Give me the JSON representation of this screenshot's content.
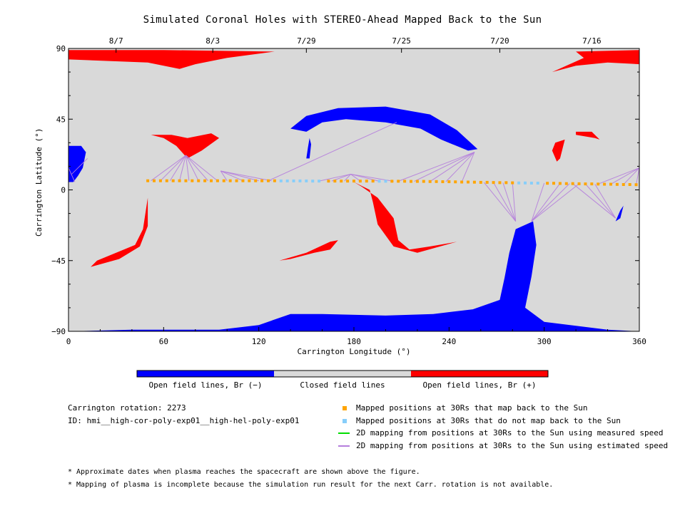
{
  "chart_data": {
    "type": "map",
    "title": "Simulated Coronal Holes with STEREO-Ahead Mapped Back to the Sun",
    "xlabel": "Carrington Longitude (°)",
    "ylabel": "Carrington Latitude (°)",
    "xlim": [
      0,
      360
    ],
    "ylim": [
      -90,
      90
    ],
    "xticks": [
      0,
      60,
      120,
      180,
      240,
      300,
      360
    ],
    "yticks": [
      90,
      45,
      0,
      -45,
      -90
    ],
    "top_date_axis": [
      {
        "label": "8/7",
        "lon": 30
      },
      {
        "label": "8/3",
        "lon": 91
      },
      {
        "label": "7/29",
        "lon": 150
      },
      {
        "label": "7/25",
        "lon": 210
      },
      {
        "label": "7/20",
        "lon": 272
      },
      {
        "label": "7/16",
        "lon": 330
      }
    ],
    "regions": [
      {
        "class": "neg",
        "lonlat": [
          [
            0,
            -90
          ],
          [
            40,
            -89
          ],
          [
            95,
            -89
          ],
          [
            120,
            -86
          ],
          [
            140,
            -79
          ],
          [
            160,
            -79
          ],
          [
            200,
            -80
          ],
          [
            230,
            -79
          ],
          [
            255,
            -76
          ],
          [
            272,
            -70
          ],
          [
            275,
            -56
          ],
          [
            278,
            -40
          ],
          [
            282,
            -25
          ],
          [
            293,
            -20
          ],
          [
            295,
            -35
          ],
          [
            292,
            -55
          ],
          [
            288,
            -75
          ],
          [
            300,
            -84
          ],
          [
            340,
            -89
          ],
          [
            360,
            -90
          ]
        ]
      },
      {
        "class": "neg",
        "lonlat": [
          [
            140,
            39
          ],
          [
            150,
            47
          ],
          [
            170,
            52
          ],
          [
            200,
            53
          ],
          [
            228,
            48
          ],
          [
            245,
            38
          ],
          [
            258,
            26
          ],
          [
            252,
            25
          ],
          [
            235,
            32
          ],
          [
            222,
            39
          ],
          [
            200,
            43
          ],
          [
            175,
            45
          ],
          [
            160,
            43
          ],
          [
            150,
            37
          ]
        ]
      },
      {
        "class": "neg",
        "lonlat": [
          [
            0,
            28
          ],
          [
            8,
            28
          ],
          [
            11,
            24
          ],
          [
            9,
            14
          ],
          [
            6,
            9
          ],
          [
            3,
            5
          ],
          [
            0,
            5
          ]
        ]
      },
      {
        "class": "neg",
        "lonlat": [
          [
            345,
            -20
          ],
          [
            348,
            -13
          ],
          [
            350,
            -10
          ],
          [
            348,
            -18
          ]
        ]
      },
      {
        "class": "neg",
        "lonlat": [
          [
            151,
            27
          ],
          [
            152,
            33
          ],
          [
            153,
            29
          ],
          [
            152,
            20
          ],
          [
            150,
            20
          ]
        ]
      },
      {
        "class": "pos",
        "lonlat": [
          [
            0,
            89
          ],
          [
            60,
            89
          ],
          [
            130,
            88
          ],
          [
            100,
            84
          ],
          [
            80,
            80
          ],
          [
            70,
            77
          ],
          [
            50,
            81
          ],
          [
            0,
            83
          ]
        ]
      },
      {
        "class": "pos",
        "lonlat": [
          [
            320,
            88
          ],
          [
            360,
            89
          ],
          [
            360,
            80
          ],
          [
            340,
            81
          ],
          [
            320,
            79
          ],
          [
            305,
            75
          ],
          [
            325,
            84
          ]
        ]
      },
      {
        "class": "pos",
        "lonlat": [
          [
            52,
            35
          ],
          [
            65,
            35
          ],
          [
            75,
            33
          ],
          [
            90,
            36
          ],
          [
            95,
            33
          ],
          [
            84,
            25
          ],
          [
            75,
            20
          ],
          [
            68,
            28
          ],
          [
            60,
            33
          ]
        ]
      },
      {
        "class": "pos",
        "lonlat": [
          [
            320,
            37
          ],
          [
            330,
            37
          ],
          [
            335,
            32
          ],
          [
            332,
            33
          ],
          [
            320,
            35
          ]
        ]
      },
      {
        "class": "pos",
        "lonlat": [
          [
            313,
            32
          ],
          [
            307,
            30
          ],
          [
            305,
            25
          ],
          [
            308,
            18
          ],
          [
            310,
            20
          ]
        ]
      },
      {
        "class": "pos",
        "lonlat": [
          [
            14,
            -49
          ],
          [
            32,
            -44
          ],
          [
            45,
            -36
          ],
          [
            50,
            -23
          ],
          [
            50,
            -5
          ],
          [
            47,
            -25
          ],
          [
            42,
            -35
          ],
          [
            30,
            -40
          ],
          [
            18,
            -45
          ]
        ]
      },
      {
        "class": "pos",
        "lonlat": [
          [
            133,
            -45
          ],
          [
            150,
            -40
          ],
          [
            165,
            -33
          ],
          [
            170,
            -32
          ],
          [
            165,
            -38
          ],
          [
            155,
            -40
          ],
          [
            140,
            -44
          ]
        ]
      },
      {
        "class": "pos",
        "lonlat": [
          [
            180,
            5
          ],
          [
            190,
            0
          ],
          [
            192,
            -8
          ],
          [
            195,
            -22
          ],
          [
            205,
            -36
          ],
          [
            220,
            -40
          ],
          [
            245,
            -33
          ],
          [
            228,
            -36
          ],
          [
            215,
            -38
          ],
          [
            208,
            -32
          ],
          [
            205,
            -18
          ],
          [
            195,
            -5
          ],
          [
            185,
            2
          ]
        ]
      }
    ],
    "points_map_back": [
      {
        "lon": 50,
        "lat": 5.8
      },
      {
        "lon": 54,
        "lat": 5.8
      },
      {
        "lon": 58,
        "lat": 5.8
      },
      {
        "lon": 62,
        "lat": 5.8
      },
      {
        "lon": 66,
        "lat": 5.8
      },
      {
        "lon": 70,
        "lat": 5.8
      },
      {
        "lon": 74,
        "lat": 5.8
      },
      {
        "lon": 78,
        "lat": 5.8
      },
      {
        "lon": 82,
        "lat": 5.8
      },
      {
        "lon": 86,
        "lat": 5.8
      },
      {
        "lon": 90,
        "lat": 5.8
      },
      {
        "lon": 94,
        "lat": 5.8
      },
      {
        "lon": 98,
        "lat": 5.8
      },
      {
        "lon": 102,
        "lat": 5.8
      },
      {
        "lon": 106,
        "lat": 5.8
      },
      {
        "lon": 110,
        "lat": 5.8
      },
      {
        "lon": 114,
        "lat": 5.8
      },
      {
        "lon": 118,
        "lat": 5.8
      },
      {
        "lon": 122,
        "lat": 5.8
      },
      {
        "lon": 126,
        "lat": 5.8
      },
      {
        "lon": 130,
        "lat": 5.8
      },
      {
        "lon": 164,
        "lat": 5.6
      },
      {
        "lon": 168,
        "lat": 5.6
      },
      {
        "lon": 172,
        "lat": 5.6
      },
      {
        "lon": 176,
        "lat": 5.6
      },
      {
        "lon": 180,
        "lat": 5.6
      },
      {
        "lon": 184,
        "lat": 5.6
      },
      {
        "lon": 188,
        "lat": 5.6
      },
      {
        "lon": 192,
        "lat": 5.6
      },
      {
        "lon": 204,
        "lat": 5.5
      },
      {
        "lon": 208,
        "lat": 5.5
      },
      {
        "lon": 212,
        "lat": 5.5
      },
      {
        "lon": 216,
        "lat": 5.4
      },
      {
        "lon": 220,
        "lat": 5.4
      },
      {
        "lon": 224,
        "lat": 5.4
      },
      {
        "lon": 228,
        "lat": 5.3
      },
      {
        "lon": 232,
        "lat": 5.3
      },
      {
        "lon": 236,
        "lat": 5.2
      },
      {
        "lon": 240,
        "lat": 5.2
      },
      {
        "lon": 244,
        "lat": 5.1
      },
      {
        "lon": 248,
        "lat": 5.0
      },
      {
        "lon": 252,
        "lat": 5.0
      },
      {
        "lon": 256,
        "lat": 4.9
      },
      {
        "lon": 260,
        "lat": 4.8
      },
      {
        "lon": 264,
        "lat": 4.8
      },
      {
        "lon": 268,
        "lat": 4.7
      },
      {
        "lon": 272,
        "lat": 4.6
      },
      {
        "lon": 276,
        "lat": 4.6
      },
      {
        "lon": 280,
        "lat": 4.5
      },
      {
        "lon": 302,
        "lat": 4.2
      },
      {
        "lon": 306,
        "lat": 4.2
      },
      {
        "lon": 310,
        "lat": 4.1
      },
      {
        "lon": 314,
        "lat": 4.0
      },
      {
        "lon": 318,
        "lat": 4.0
      },
      {
        "lon": 322,
        "lat": 3.9
      },
      {
        "lon": 326,
        "lat": 3.8
      },
      {
        "lon": 330,
        "lat": 3.8
      },
      {
        "lon": 334,
        "lat": 3.7
      },
      {
        "lon": 338,
        "lat": 3.6
      },
      {
        "lon": 342,
        "lat": 3.6
      },
      {
        "lon": 346,
        "lat": 3.5
      },
      {
        "lon": 350,
        "lat": 3.4
      },
      {
        "lon": 354,
        "lat": 3.4
      },
      {
        "lon": 358,
        "lat": 3.3
      }
    ],
    "points_no_map": [
      {
        "lon": 134,
        "lat": 5.7
      },
      {
        "lon": 138,
        "lat": 5.7
      },
      {
        "lon": 142,
        "lat": 5.7
      },
      {
        "lon": 146,
        "lat": 5.7
      },
      {
        "lon": 150,
        "lat": 5.7
      },
      {
        "lon": 154,
        "lat": 5.6
      },
      {
        "lon": 158,
        "lat": 5.6
      },
      {
        "lon": 196,
        "lat": 5.5
      },
      {
        "lon": 200,
        "lat": 5.5
      },
      {
        "lon": 284,
        "lat": 4.4
      },
      {
        "lon": 288,
        "lat": 4.4
      },
      {
        "lon": 292,
        "lat": 4.3
      },
      {
        "lon": 296,
        "lat": 4.3
      }
    ],
    "mapping_lines_estimated": [
      {
        "from": [
          0,
          14
        ],
        "to": [
          4,
          5
        ]
      },
      {
        "from": [
          12,
          20
        ],
        "to": [
          2,
          10
        ]
      },
      {
        "from": [
          74,
          22
        ],
        "to": [
          52,
          5.8
        ]
      },
      {
        "from": [
          74,
          22
        ],
        "to": [
          58,
          5.8
        ]
      },
      {
        "from": [
          74,
          22
        ],
        "to": [
          64,
          5.8
        ]
      },
      {
        "from": [
          74,
          22
        ],
        "to": [
          70,
          5.8
        ]
      },
      {
        "from": [
          74,
          22
        ],
        "to": [
          76,
          5.8
        ]
      },
      {
        "from": [
          74,
          22
        ],
        "to": [
          82,
          5.8
        ]
      },
      {
        "from": [
          74,
          22
        ],
        "to": [
          88,
          5.8
        ]
      },
      {
        "from": [
          74,
          22
        ],
        "to": [
          94,
          5.8
        ]
      },
      {
        "from": [
          96,
          12
        ],
        "to": [
          100,
          5.8
        ]
      },
      {
        "from": [
          96,
          12
        ],
        "to": [
          110,
          5.8
        ]
      },
      {
        "from": [
          96,
          12
        ],
        "to": [
          120,
          5.8
        ]
      },
      {
        "from": [
          96,
          12
        ],
        "to": [
          128,
          5.8
        ]
      },
      {
        "from": [
          207,
          43
        ],
        "to": [
          126,
          5.8
        ]
      },
      {
        "from": [
          178,
          10
        ],
        "to": [
          158,
          5.6
        ]
      },
      {
        "from": [
          178,
          10
        ],
        "to": [
          166,
          5.6
        ]
      },
      {
        "from": [
          178,
          10
        ],
        "to": [
          174,
          5.6
        ]
      },
      {
        "from": [
          178,
          10
        ],
        "to": [
          184,
          5.6
        ]
      },
      {
        "from": [
          178,
          10
        ],
        "to": [
          196,
          5.5
        ]
      },
      {
        "from": [
          178,
          10
        ],
        "to": [
          205,
          5.5
        ]
      },
      {
        "from": [
          256,
          24
        ],
        "to": [
          208,
          5.5
        ]
      },
      {
        "from": [
          256,
          24
        ],
        "to": [
          218,
          5.4
        ]
      },
      {
        "from": [
          256,
          24
        ],
        "to": [
          228,
          5.3
        ]
      },
      {
        "from": [
          256,
          24
        ],
        "to": [
          238,
          5.2
        ]
      },
      {
        "from": [
          256,
          24
        ],
        "to": [
          248,
          5.0
        ]
      },
      {
        "from": [
          282,
          -20
        ],
        "to": [
          262,
          4.8
        ]
      },
      {
        "from": [
          282,
          -20
        ],
        "to": [
          268,
          4.7
        ]
      },
      {
        "from": [
          282,
          -20
        ],
        "to": [
          274,
          4.6
        ]
      },
      {
        "from": [
          282,
          -20
        ],
        "to": [
          280,
          4.5
        ]
      },
      {
        "from": [
          292,
          -20
        ],
        "to": [
          300,
          4.3
        ]
      },
      {
        "from": [
          292,
          -20
        ],
        "to": [
          310,
          4.1
        ]
      },
      {
        "from": [
          292,
          -20
        ],
        "to": [
          316,
          4.0
        ]
      },
      {
        "from": [
          292,
          -20
        ],
        "to": [
          322,
          3.9
        ]
      },
      {
        "from": [
          345,
          -18
        ],
        "to": [
          318,
          4.0
        ]
      },
      {
        "from": [
          345,
          -18
        ],
        "to": [
          326,
          3.8
        ]
      },
      {
        "from": [
          345,
          -18
        ],
        "to": [
          332,
          3.7
        ]
      },
      {
        "from": [
          360,
          14
        ],
        "to": [
          334,
          3.7
        ]
      },
      {
        "from": [
          360,
          14
        ],
        "to": [
          342,
          3.6
        ]
      },
      {
        "from": [
          360,
          14
        ],
        "to": [
          350,
          3.4
        ]
      },
      {
        "from": [
          360,
          14
        ],
        "to": [
          358,
          3.3
        ]
      }
    ],
    "grid": false,
    "colorbar": {
      "segments": [
        {
          "label": "Open field lines, Br (−)",
          "color": "#0000ff"
        },
        {
          "label": "Closed field lines",
          "color": "#d9d9d9"
        },
        {
          "label": "Open field lines, Br (+)",
          "color": "#ff0000"
        }
      ]
    },
    "legend": [
      {
        "label": "Mapped positions at 30Rs that map back to the Sun",
        "marker": "square",
        "color": "#ffa500"
      },
      {
        "label": "Mapped positions at 30Rs that do not map back to the Sun",
        "marker": "square",
        "color": "#87cefa"
      },
      {
        "label": "2D mapping from positions at 30Rs to the Sun using measured speed",
        "marker": "line",
        "color": "#00dd00"
      },
      {
        "label": "2D mapping from positions at 30Rs to the Sun using estimated speed",
        "marker": "line",
        "color": "#b57edc"
      }
    ]
  },
  "info": {
    "rotation": "Carrington rotation: 2273",
    "id": "ID: hmi__high-cor-poly-exp01__high-hel-poly-exp01"
  },
  "notes": [
    "* Approximate dates when plasma reaches the spacecraft are shown above the figure.",
    "* Mapping of plasma is incomplete because the simulation run result for the next Carr. rotation is not available."
  ],
  "colors": {
    "background": "#d9d9d9",
    "negative": "#0000ff",
    "positive": "#ff0000",
    "map_back": "#ffa500",
    "no_map": "#87cefa",
    "estimated_line": "#b57edc",
    "measured_line": "#00dd00"
  }
}
